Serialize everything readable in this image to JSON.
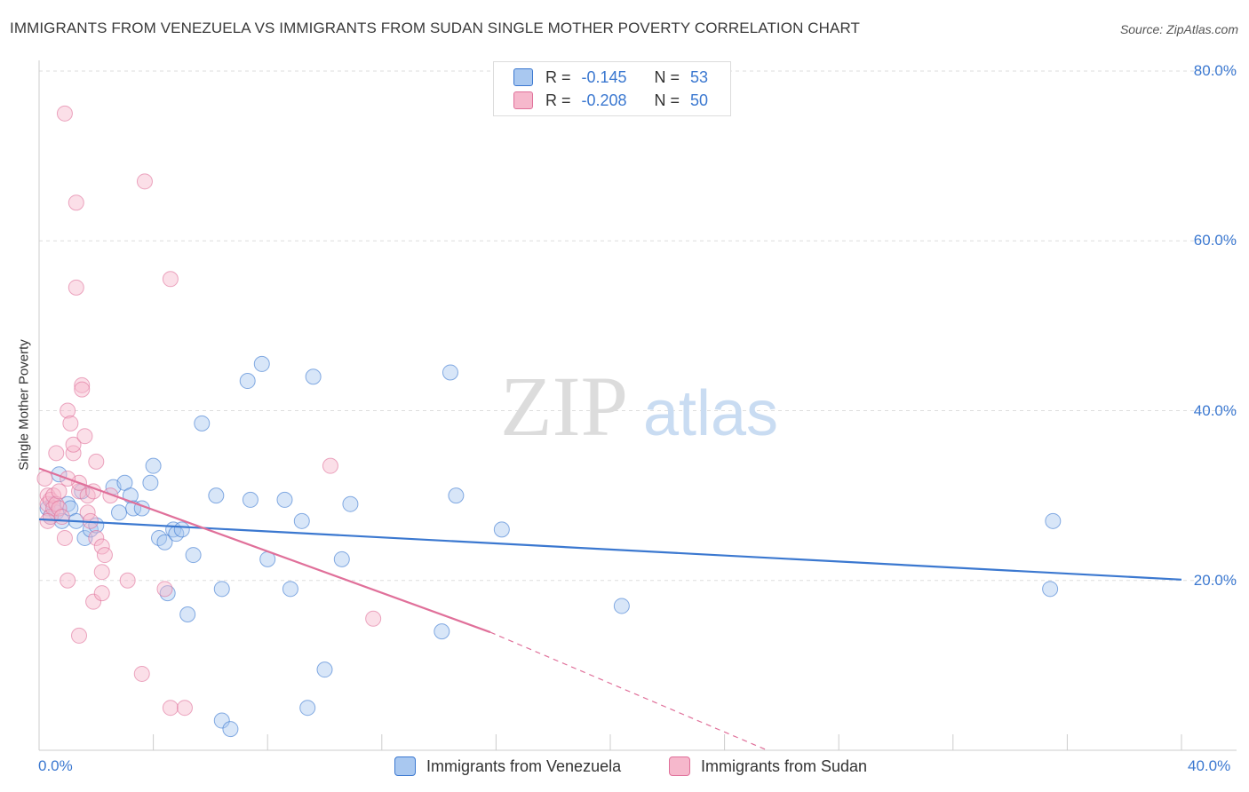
{
  "title": "IMMIGRANTS FROM VENEZUELA VS IMMIGRANTS FROM SUDAN SINGLE MOTHER POVERTY CORRELATION CHART",
  "source": "Source: ZipAtlas.com",
  "watermark": {
    "zip": "ZIP",
    "atlas": "atlas"
  },
  "colors": {
    "blue": "#3b78d0",
    "blue_fill": "#a9c8f0",
    "pink": "#e0709a",
    "pink_fill": "#f6b8cc",
    "grid": "#dddddd"
  },
  "legend_top": {
    "row1": {
      "r_label": "R =",
      "r_value": "-0.145",
      "n_label": "N =",
      "n_value": "53"
    },
    "row2": {
      "r_label": "R =",
      "r_value": "-0.208",
      "n_label": "N =",
      "n_value": "50"
    }
  },
  "legend_bottom": {
    "series1": "Immigrants from Venezuela",
    "series2": "Immigrants from Sudan"
  },
  "chart_data": {
    "type": "scatter",
    "title": "IMMIGRANTS FROM VENEZUELA VS IMMIGRANTS FROM SUDAN SINGLE MOTHER POVERTY CORRELATION CHART",
    "xlabel": "",
    "ylabel": "Single Mother Poverty",
    "xlim": [
      0,
      40
    ],
    "ylim": [
      0,
      80
    ],
    "x_tick_labels": [
      "0.0%",
      "40.0%"
    ],
    "y_ticks": [
      20,
      40,
      60,
      80
    ],
    "y_tick_labels": [
      "20.0%",
      "40.0%",
      "60.0%",
      "80.0%"
    ],
    "series": [
      {
        "name": "Immigrants from Venezuela",
        "color": "blue",
        "points": [
          [
            0.3,
            28.5
          ],
          [
            0.4,
            27.5
          ],
          [
            0.5,
            29
          ],
          [
            0.6,
            28
          ],
          [
            0.7,
            32.5
          ],
          [
            0.8,
            27
          ],
          [
            1.0,
            29
          ],
          [
            1.1,
            28.5
          ],
          [
            1.3,
            27
          ],
          [
            1.5,
            30.5
          ],
          [
            1.6,
            25
          ],
          [
            1.8,
            26
          ],
          [
            2.0,
            26.5
          ],
          [
            2.6,
            31
          ],
          [
            2.8,
            28
          ],
          [
            3.0,
            31.5
          ],
          [
            3.2,
            30
          ],
          [
            3.3,
            28.5
          ],
          [
            3.6,
            28.5
          ],
          [
            3.9,
            31.5
          ],
          [
            4.0,
            33.5
          ],
          [
            4.2,
            25
          ],
          [
            4.4,
            24.5
          ],
          [
            4.5,
            18.5
          ],
          [
            4.7,
            26
          ],
          [
            4.8,
            25.5
          ],
          [
            5.0,
            26
          ],
          [
            5.2,
            16
          ],
          [
            5.4,
            23
          ],
          [
            5.7,
            38.5
          ],
          [
            6.2,
            30
          ],
          [
            6.4,
            3.5
          ],
          [
            6.4,
            19
          ],
          [
            6.7,
            2.5
          ],
          [
            7.3,
            43.5
          ],
          [
            7.4,
            29.5
          ],
          [
            7.8,
            45.5
          ],
          [
            8.0,
            22.5
          ],
          [
            8.6,
            29.5
          ],
          [
            8.8,
            19
          ],
          [
            9.2,
            27
          ],
          [
            9.4,
            5
          ],
          [
            9.6,
            44
          ],
          [
            10.0,
            9.5
          ],
          [
            10.6,
            22.5
          ],
          [
            10.9,
            29
          ],
          [
            14.1,
            14
          ],
          [
            14.4,
            44.5
          ],
          [
            14.6,
            30
          ],
          [
            16.2,
            26
          ],
          [
            20.4,
            17
          ],
          [
            35.4,
            19
          ],
          [
            35.5,
            27
          ]
        ],
        "trend": {
          "x": [
            0,
            40
          ],
          "y": [
            27.2,
            20.1
          ]
        }
      },
      {
        "name": "Immigrants from Sudan",
        "color": "pink",
        "points": [
          [
            0.2,
            32
          ],
          [
            0.3,
            30
          ],
          [
            0.3,
            29
          ],
          [
            0.4,
            27.5
          ],
          [
            0.4,
            29.5
          ],
          [
            0.5,
            28.5
          ],
          [
            0.5,
            30
          ],
          [
            0.6,
            35
          ],
          [
            0.6,
            29
          ],
          [
            0.7,
            28.5
          ],
          [
            0.7,
            30.5
          ],
          [
            0.8,
            27.5
          ],
          [
            0.9,
            75
          ],
          [
            0.9,
            25
          ],
          [
            1.0,
            20
          ],
          [
            1.0,
            40
          ],
          [
            1.1,
            38.5
          ],
          [
            1.2,
            35
          ],
          [
            1.2,
            36
          ],
          [
            1.3,
            64.5
          ],
          [
            1.3,
            54.5
          ],
          [
            1.4,
            30.5
          ],
          [
            1.4,
            31.5
          ],
          [
            1.4,
            13.5
          ],
          [
            1.5,
            43
          ],
          [
            1.5,
            42.5
          ],
          [
            1.6,
            37
          ],
          [
            1.7,
            28
          ],
          [
            1.7,
            30
          ],
          [
            1.8,
            27
          ],
          [
            1.9,
            30.5
          ],
          [
            1.9,
            17.5
          ],
          [
            2.0,
            34
          ],
          [
            2.0,
            25
          ],
          [
            2.2,
            24
          ],
          [
            2.2,
            18.5
          ],
          [
            2.2,
            21
          ],
          [
            2.3,
            23
          ],
          [
            3.1,
            20
          ],
          [
            3.6,
            9
          ],
          [
            3.7,
            67
          ],
          [
            4.4,
            19
          ],
          [
            4.6,
            55.5
          ],
          [
            4.6,
            5
          ],
          [
            5.1,
            5
          ],
          [
            10.2,
            33.5
          ],
          [
            11.7,
            15.5
          ],
          [
            0.3,
            27
          ],
          [
            1.0,
            32
          ],
          [
            2.5,
            30
          ]
        ],
        "trend": {
          "x": [
            0,
            15.8
          ],
          "y": [
            33.2,
            13.9
          ]
        },
        "trend_dashed": {
          "x": [
            15.8,
            25.5
          ],
          "y": [
            13.9,
            0
          ]
        }
      }
    ]
  }
}
